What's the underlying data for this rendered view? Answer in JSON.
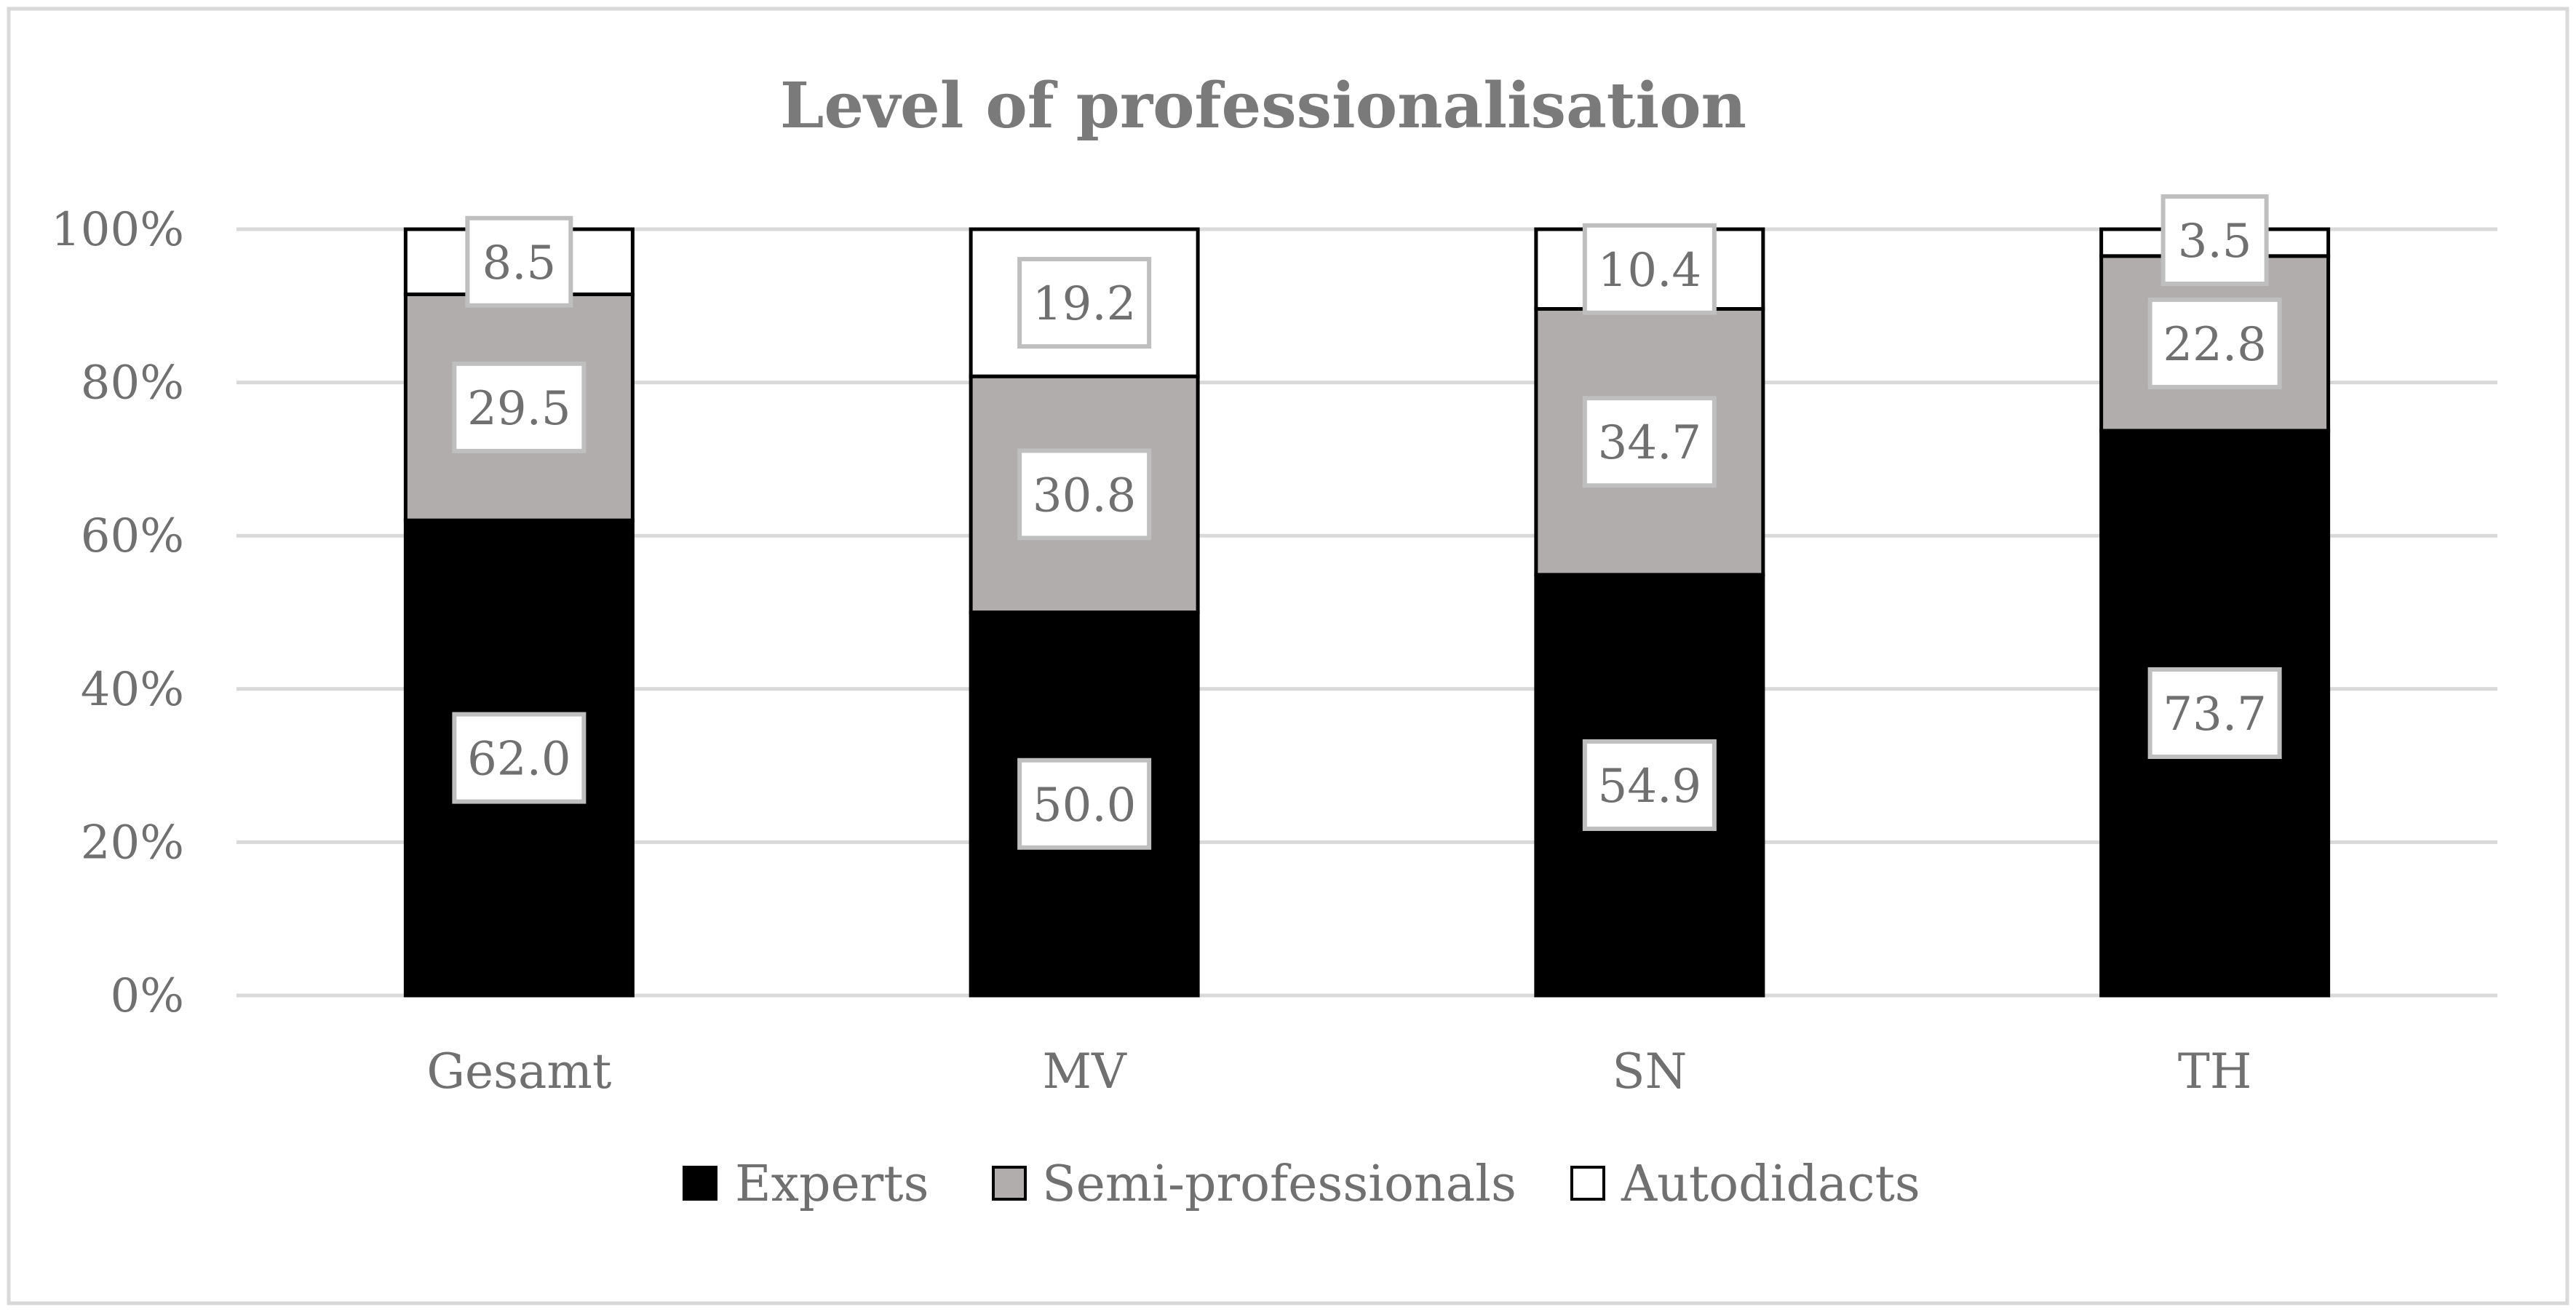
{
  "chart_data": {
    "type": "bar",
    "stacked": true,
    "percent_stacked": true,
    "title": "Level of professionalisation",
    "xlabel": "",
    "ylabel": "",
    "categories": [
      "Gesamt",
      "MV",
      "SN",
      "TH"
    ],
    "series": [
      {
        "name": "Experts",
        "values": [
          62.0,
          50.0,
          54.9,
          73.7
        ],
        "labels": [
          "62.0",
          "50.0",
          "54.9",
          "73.7"
        ],
        "color": "#000000"
      },
      {
        "name": "Semi-professionals",
        "values": [
          29.5,
          30.8,
          34.7,
          22.8
        ],
        "labels": [
          "29.5",
          "30.8",
          "34.7",
          "22.8"
        ],
        "color": "#b0adac"
      },
      {
        "name": "Autodidacts",
        "values": [
          8.5,
          19.2,
          10.4,
          3.5
        ],
        "labels": [
          "8.5",
          "19.2",
          "10.4",
          "3.5"
        ],
        "color": "#ffffff"
      }
    ],
    "y_ticks": [
      "0%",
      "20%",
      "40%",
      "60%",
      "80%",
      "100%"
    ],
    "ylim": [
      0,
      100
    ],
    "grid": true,
    "legend_position": "bottom"
  },
  "colors": {
    "frame_border": "#d9d9d9",
    "gridline": "#d9d9d9",
    "bar_outline": "#000000",
    "label_box_border": "#bfbfbf",
    "label_box_fill": "#ffffff"
  }
}
